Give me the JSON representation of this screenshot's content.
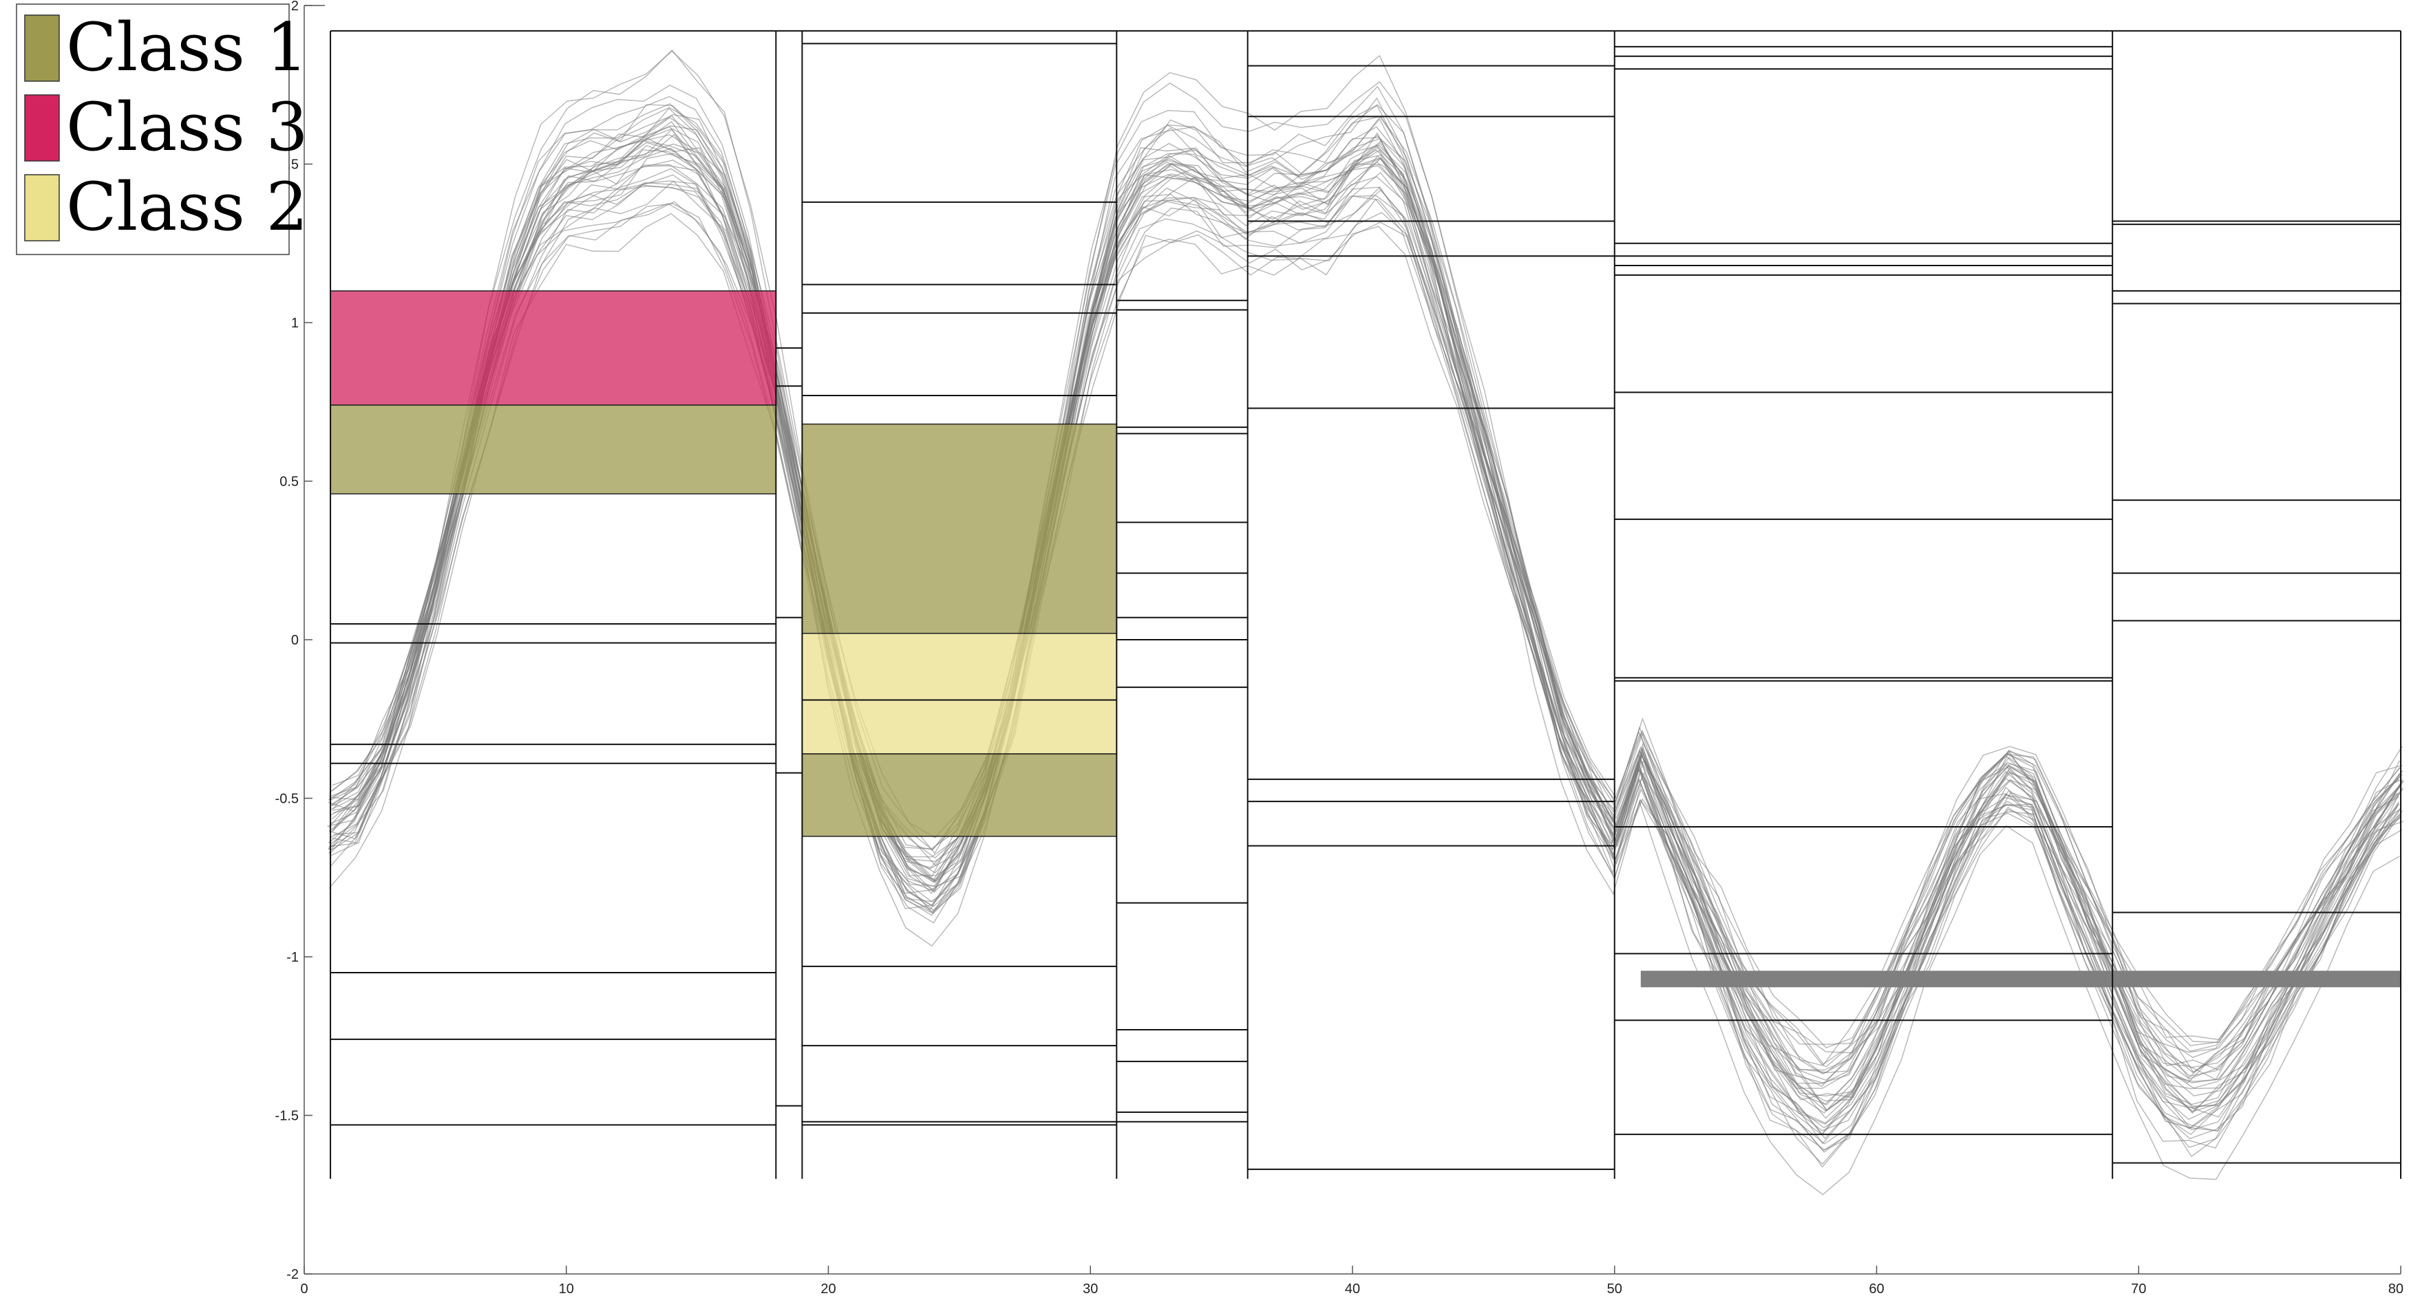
{
  "chart_data": {
    "type": "line",
    "title": "",
    "xlabel": "",
    "ylabel": "",
    "xlim": [
      0,
      80
    ],
    "ylim": [
      -2,
      2
    ],
    "x_ticks": [
      0,
      10,
      20,
      30,
      40,
      50,
      60,
      70,
      80
    ],
    "y_ticks": [
      -2,
      -1.5,
      -1,
      -0.5,
      0,
      0.5,
      1,
      1.5,
      2
    ],
    "x_tick_labels": [
      "0",
      "10",
      "20",
      "30",
      "40",
      "50",
      "60",
      "70",
      "80"
    ],
    "y_tick_labels": [
      "-2",
      "-1.5",
      "-1",
      "-0.5",
      "0",
      "0.5",
      "1",
      "1.5",
      "2"
    ],
    "grid": false,
    "legend_position": "top-left",
    "legend": [
      {
        "label": "Class 1",
        "color": "#9d9a4f"
      },
      {
        "label": "Class 3",
        "color": "#d4245f"
      },
      {
        "label": "Class 2",
        "color": "#ebe08c"
      }
    ],
    "curve_color": "#808080",
    "curve_count": 40,
    "mean_curve": {
      "x": [
        1,
        2,
        3,
        4,
        5,
        6,
        7,
        8,
        9,
        10,
        11,
        12,
        13,
        14,
        15,
        16,
        17,
        18,
        19,
        20,
        21,
        22,
        23,
        24,
        25,
        26,
        27,
        28,
        29,
        30,
        31,
        32,
        33,
        34,
        35,
        36,
        37,
        38,
        39,
        40,
        41,
        42,
        43,
        44,
        45,
        46,
        47,
        48,
        49,
        50,
        51,
        52,
        53,
        54,
        55,
        56,
        57,
        58,
        59,
        60,
        61,
        62,
        63,
        64,
        65,
        66,
        67,
        68,
        69,
        70,
        71,
        72,
        73,
        74,
        75,
        76,
        77,
        78,
        79,
        80
      ],
      "y": [
        -0.6,
        -0.55,
        -0.4,
        -0.15,
        0.15,
        0.5,
        0.85,
        1.15,
        1.35,
        1.45,
        1.48,
        1.5,
        1.55,
        1.58,
        1.52,
        1.4,
        1.15,
        0.8,
        0.4,
        0.0,
        -0.35,
        -0.6,
        -0.75,
        -0.8,
        -0.7,
        -0.5,
        -0.2,
        0.2,
        0.6,
        1.0,
        1.3,
        1.45,
        1.5,
        1.48,
        1.42,
        1.38,
        1.4,
        1.4,
        1.42,
        1.5,
        1.55,
        1.45,
        1.2,
        0.9,
        0.6,
        0.3,
        0.0,
        -0.3,
        -0.5,
        -0.65,
        -0.4,
        -0.6,
        -0.8,
        -1.0,
        -1.2,
        -1.35,
        -1.45,
        -1.5,
        -1.45,
        -1.3,
        -1.1,
        -0.9,
        -0.7,
        -0.55,
        -0.45,
        -0.5,
        -0.7,
        -0.9,
        -1.1,
        -1.3,
        -1.42,
        -1.48,
        -1.45,
        -1.35,
        -1.2,
        -1.05,
        -0.9,
        -0.75,
        -0.6,
        -0.5
      ]
    },
    "flat_band": [
      {
        "x0": 51,
        "x1": 69,
        "y": -1.07
      },
      {
        "x0": 69,
        "x1": 80,
        "y": -1.07
      }
    ],
    "segments": [
      {
        "x0": 1,
        "x1": 18,
        "top": 1.92,
        "bottom": -1.7,
        "lines": [
          0.05,
          -0.01,
          -0.33,
          -0.39,
          -1.05,
          -1.26,
          -1.53
        ]
      },
      {
        "x0": 18,
        "x1": 19,
        "top": 1.92,
        "bottom": -1.7,
        "lines": [
          0.92,
          0.8,
          0.07,
          -0.42,
          -1.47
        ]
      },
      {
        "x0": 19,
        "x1": 31,
        "top": 1.92,
        "bottom": -1.7,
        "lines": [
          1.88,
          1.38,
          1.12,
          1.03,
          0.77,
          -0.19,
          -1.03,
          -1.28,
          -1.52,
          -1.53
        ]
      },
      {
        "x0": 31,
        "x1": 36,
        "top": 1.92,
        "bottom": -1.7,
        "lines": [
          1.07,
          1.04,
          0.67,
          0.65,
          0.37,
          0.21,
          0.07,
          0.0,
          -0.15,
          -0.83,
          -1.23,
          -1.33,
          -1.49,
          -1.52
        ]
      },
      {
        "x0": 36,
        "x1": 50,
        "top": 1.92,
        "bottom": -1.7,
        "lines": [
          1.81,
          1.65,
          1.32,
          1.21,
          0.73,
          -0.44,
          -0.51,
          -0.65,
          -1.67
        ]
      },
      {
        "x0": 50,
        "x1": 69,
        "top": 1.92,
        "bottom": -1.7,
        "lines": [
          1.87,
          1.84,
          1.8,
          1.25,
          1.21,
          1.18,
          1.15,
          0.78,
          0.38,
          -0.12,
          -0.13,
          -0.59,
          -0.99,
          -1.2,
          -1.56
        ]
      },
      {
        "x0": 69,
        "x1": 80,
        "top": 1.92,
        "bottom": -1.7,
        "lines": [
          1.32,
          1.31,
          1.1,
          1.06,
          0.44,
          0.21,
          0.06,
          -0.86,
          -1.65
        ]
      }
    ],
    "class_boxes": [
      {
        "class": "Class 3",
        "x0": 1,
        "x1": 18,
        "y0": 0.74,
        "y1": 1.1,
        "color": "#d4245f"
      },
      {
        "class": "Class 1",
        "x0": 1,
        "x1": 18,
        "y0": 0.46,
        "y1": 0.74,
        "color": "#9d9a4f"
      },
      {
        "class": "Class 1",
        "x0": 19,
        "x1": 31,
        "y0": 0.02,
        "y1": 0.68,
        "color": "#9d9a4f"
      },
      {
        "class": "Class 2",
        "x0": 19,
        "x1": 31,
        "y0": -0.36,
        "y1": 0.02,
        "color": "#ebe08c"
      },
      {
        "class": "Class 1",
        "x0": 19,
        "x1": 31,
        "y0": -0.62,
        "y1": -0.36,
        "color": "#9d9a4f"
      }
    ]
  }
}
